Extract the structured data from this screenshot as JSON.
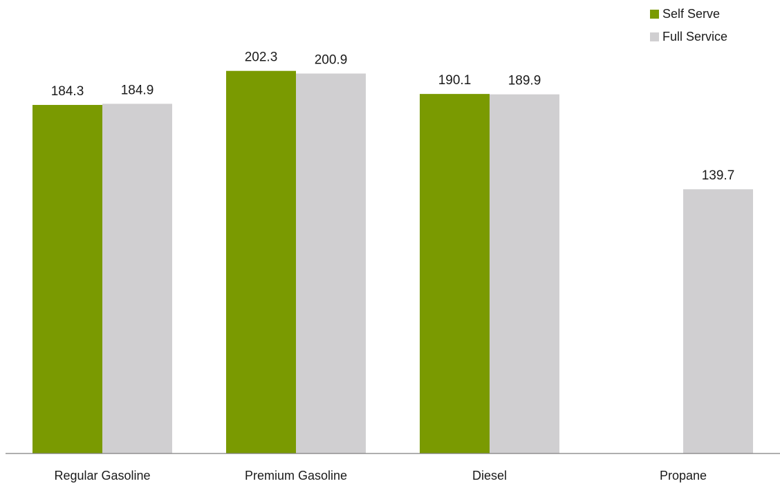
{
  "chart_data": {
    "type": "bar",
    "categories": [
      "Regular Gasoline",
      "Premium Gasoline",
      "Diesel",
      "Propane"
    ],
    "series": [
      {
        "name": "Self Serve",
        "color": "#7a9a01",
        "values": [
          184.3,
          202.3,
          190.1,
          null
        ]
      },
      {
        "name": "Full Service",
        "color": "#d0cfd1",
        "values": [
          184.9,
          200.9,
          189.9,
          139.7
        ]
      }
    ],
    "title": "",
    "xlabel": "",
    "ylabel": "",
    "ylim": [
      0,
      210
    ],
    "grid": false,
    "legend_position": "top-right",
    "value_labels": true
  }
}
